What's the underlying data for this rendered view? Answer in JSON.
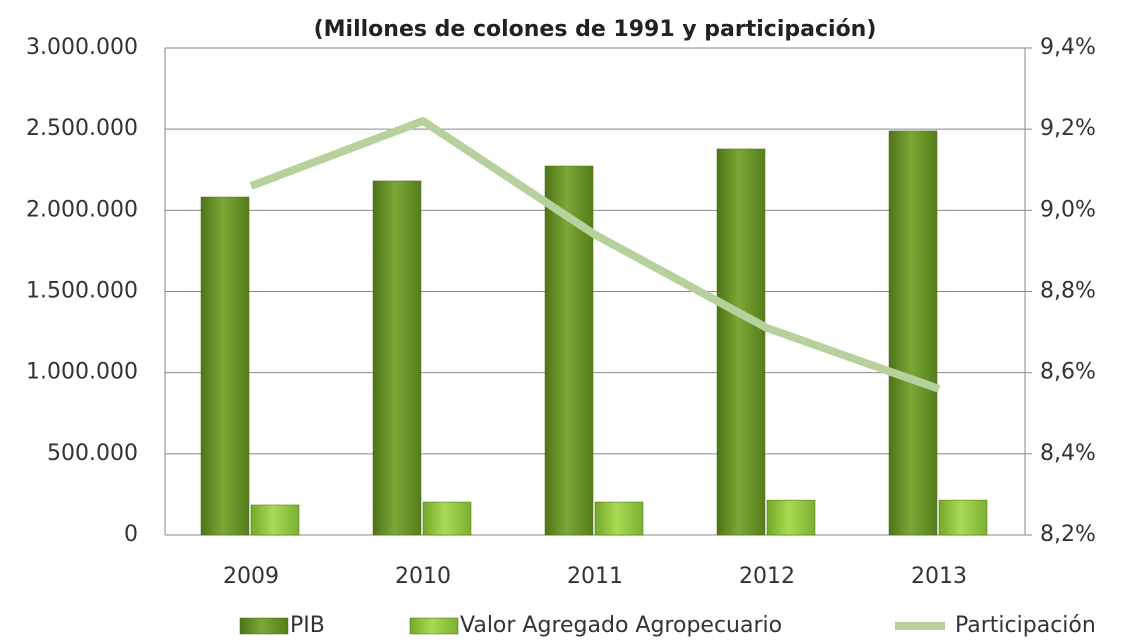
{
  "chart_data": {
    "type": "bar_line",
    "title": "(Millones de colones de 1991 y participación)",
    "categories": [
      "2009",
      "2010",
      "2011",
      "2012",
      "2013"
    ],
    "series": [
      {
        "name": "PIB",
        "color": "#6e9a2a",
        "values": [
          2082000,
          2181000,
          2273000,
          2378000,
          2489000
        ]
      },
      {
        "name": "Valor Agregado Agropecuario",
        "color": "#9acd3c",
        "values": [
          185000,
          203000,
          203000,
          215000,
          215000
        ]
      },
      {
        "name": "Participación",
        "color": "#b7d19c",
        "axis": "y2",
        "type": "line",
        "values": [
          9.06,
          9.22,
          8.94,
          8.71,
          8.56
        ]
      }
    ],
    "ylim": [
      0,
      3000000
    ],
    "yticks": [
      {
        "value": 0,
        "label": "0"
      },
      {
        "value": 500000,
        "label": "500.000"
      },
      {
        "value": 1000000,
        "label": "1.000.000"
      },
      {
        "value": 1500000,
        "label": "1.500.000"
      },
      {
        "value": 2000000,
        "label": "2.000.000"
      },
      {
        "value": 2500000,
        "label": "2.500.000"
      },
      {
        "value": 3000000,
        "label": "3.000.000"
      }
    ],
    "y2lim": [
      8.2,
      9.4
    ],
    "y2ticks": [
      {
        "value": 8.2,
        "label": "8,2%"
      },
      {
        "value": 8.4,
        "label": "8,4%"
      },
      {
        "value": 8.6,
        "label": "8,6%"
      },
      {
        "value": 8.8,
        "label": "8,8%"
      },
      {
        "value": 9.0,
        "label": "9,0%"
      },
      {
        "value": 9.2,
        "label": "9,2%"
      },
      {
        "value": 9.4,
        "label": "9,4%"
      }
    ],
    "grid": true,
    "legend": "bottom"
  }
}
